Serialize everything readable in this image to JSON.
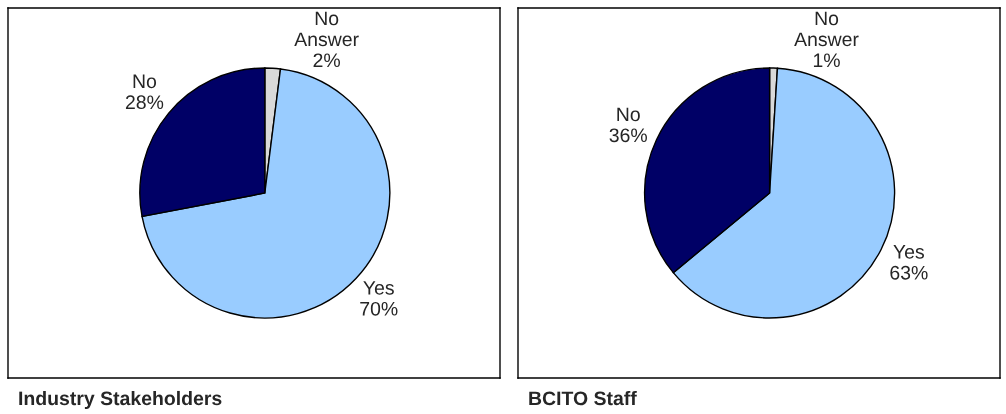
{
  "chart_data": [
    {
      "type": "pie",
      "title": "Industry Stakeholders",
      "categories": [
        "No Answer",
        "Yes",
        "No"
      ],
      "values": [
        2,
        70,
        28
      ],
      "value_labels": [
        "2%",
        "70%",
        "28%"
      ],
      "colors": [
        "#d9d9d9",
        "#99ccff",
        "#000066"
      ]
    },
    {
      "type": "pie",
      "title": "BCITO Staff",
      "categories": [
        "No Answer",
        "Yes",
        "No"
      ],
      "values": [
        1,
        63,
        36
      ],
      "value_labels": [
        "1%",
        "63%",
        "36%"
      ],
      "colors": [
        "#d9d9d9",
        "#99ccff",
        "#000066"
      ]
    }
  ]
}
